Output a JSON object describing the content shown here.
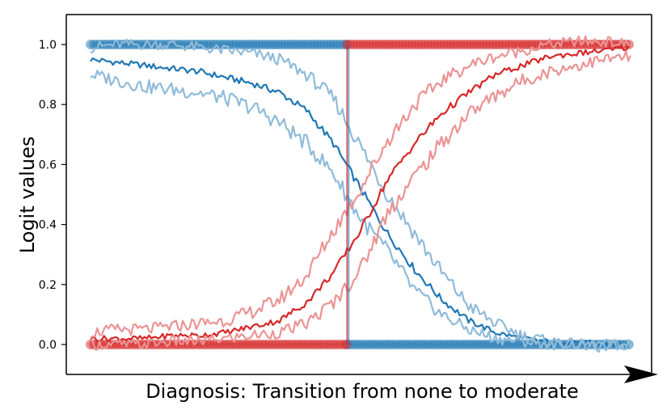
{
  "chart_data": {
    "type": "line",
    "title": "",
    "xlabel": "Diagnosis: Transition from none to moderate",
    "ylabel": "Logit values",
    "ylim": [
      -0.1,
      1.1
    ],
    "xlim": [
      0,
      100
    ],
    "yticks": [
      "0.0",
      "0.2",
      "0.4",
      "0.6",
      "0.8",
      "1.0"
    ],
    "x_axis_arrow": true,
    "grid": false,
    "legend": "none",
    "transition_x": 47.5,
    "colors": {
      "blue": "#1f77b4",
      "blue_light": "#8fbbd9",
      "red": "#d62728",
      "red_light": "#eb9394"
    },
    "series": [
      {
        "color": "blue",
        "style": "line",
        "x": [
          0,
          5,
          10,
          15,
          20,
          25,
          30,
          35,
          40,
          45,
          50,
          55,
          60,
          65,
          70,
          75,
          80,
          85,
          90,
          95,
          100
        ],
        "values": [
          0.95,
          0.94,
          0.93,
          0.92,
          0.91,
          0.89,
          0.87,
          0.84,
          0.78,
          0.67,
          0.52,
          0.37,
          0.25,
          0.15,
          0.08,
          0.04,
          0.02,
          0.01,
          0.01,
          0.0,
          0.0
        ]
      },
      {
        "color": "blue_light",
        "style": "line",
        "x": [
          0,
          5,
          10,
          15,
          20,
          25,
          30,
          35,
          40,
          45,
          50,
          55,
          60,
          65,
          70,
          75,
          80,
          85,
          90,
          95,
          100
        ],
        "values": [
          0.99,
          1.0,
          1.0,
          1.0,
          0.99,
          0.98,
          0.97,
          0.95,
          0.9,
          0.82,
          0.66,
          0.5,
          0.37,
          0.24,
          0.13,
          0.07,
          0.03,
          0.01,
          0.0,
          0.0,
          0.0
        ]
      },
      {
        "color": "blue_light",
        "style": "line",
        "x": [
          0,
          5,
          10,
          15,
          20,
          25,
          30,
          35,
          40,
          45,
          50,
          55,
          60,
          65,
          70,
          75,
          80,
          85,
          90,
          95,
          100
        ],
        "values": [
          0.9,
          0.88,
          0.86,
          0.85,
          0.84,
          0.82,
          0.79,
          0.74,
          0.67,
          0.57,
          0.42,
          0.31,
          0.18,
          0.1,
          0.05,
          0.02,
          0.01,
          0.0,
          0.0,
          -0.01,
          0.0
        ]
      },
      {
        "color": "red",
        "style": "line",
        "x": [
          0,
          5,
          10,
          15,
          20,
          25,
          30,
          35,
          40,
          45,
          50,
          55,
          60,
          65,
          70,
          75,
          80,
          85,
          90,
          95,
          100
        ],
        "values": [
          0.02,
          0.02,
          0.02,
          0.03,
          0.03,
          0.04,
          0.06,
          0.08,
          0.14,
          0.24,
          0.38,
          0.55,
          0.67,
          0.77,
          0.84,
          0.9,
          0.93,
          0.96,
          0.97,
          0.98,
          0.99
        ]
      },
      {
        "color": "red_light",
        "style": "line",
        "x": [
          0,
          5,
          10,
          15,
          20,
          25,
          30,
          35,
          40,
          45,
          50,
          55,
          60,
          65,
          70,
          75,
          80,
          85,
          90,
          95,
          100
        ],
        "values": [
          0.04,
          0.05,
          0.05,
          0.06,
          0.07,
          0.08,
          0.11,
          0.15,
          0.23,
          0.38,
          0.52,
          0.68,
          0.8,
          0.88,
          0.93,
          0.96,
          0.98,
          1.0,
          1.01,
          1.01,
          1.0
        ]
      },
      {
        "color": "red_light",
        "style": "line",
        "x": [
          0,
          5,
          10,
          15,
          20,
          25,
          30,
          35,
          40,
          45,
          50,
          55,
          60,
          65,
          70,
          75,
          80,
          85,
          90,
          95,
          100
        ],
        "values": [
          0.0,
          0.0,
          0.0,
          0.01,
          0.01,
          0.02,
          0.03,
          0.04,
          0.07,
          0.14,
          0.25,
          0.44,
          0.56,
          0.67,
          0.77,
          0.83,
          0.88,
          0.91,
          0.93,
          0.95,
          0.96
        ]
      },
      {
        "color": "blue",
        "style": "dots",
        "x_range": [
          0,
          47.5
        ],
        "y": 1.0
      },
      {
        "color": "blue",
        "style": "dots",
        "x_range": [
          47.5,
          100
        ],
        "y": 0.0
      },
      {
        "color": "red",
        "style": "dots",
        "x_range": [
          0,
          47.5
        ],
        "y": 0.0
      },
      {
        "color": "red",
        "style": "dots",
        "x_range": [
          47.5,
          100
        ],
        "y": 1.0
      }
    ]
  }
}
